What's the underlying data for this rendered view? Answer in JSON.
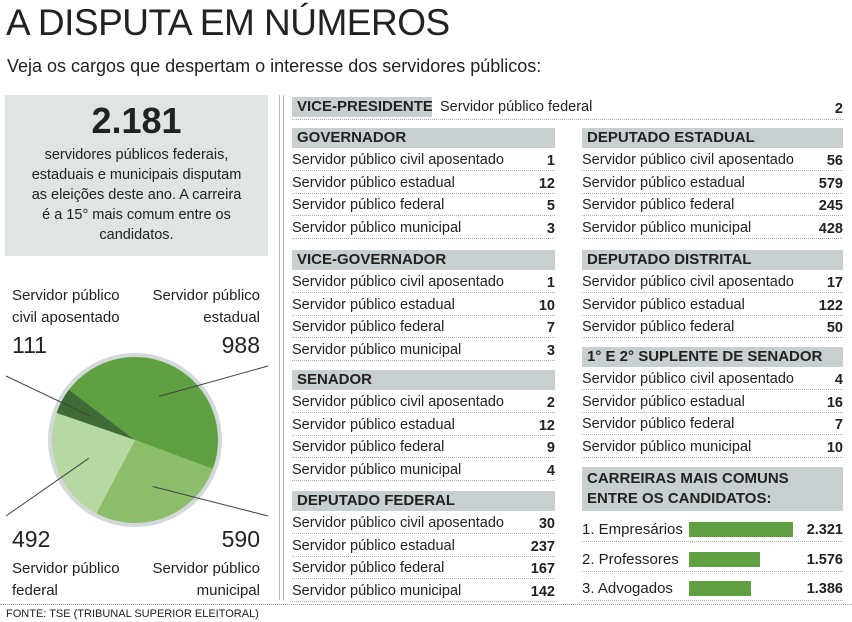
{
  "header": {
    "title": "A DISPUTA EM NÚMEROS",
    "subtitle": "Veja os cargos que despertam o interesse dos servidores públicos:"
  },
  "highlight": {
    "number": "2.181",
    "text": "servidores públicos federais, estaduais e municipais disputam as eleições deste ano. A carreira é a 15° mais comum entre os candidatos."
  },
  "tables": [
    {
      "title": "VICE-PRESIDENTE",
      "rows": [
        [
          "Servidor público federal",
          2
        ]
      ]
    },
    {
      "title": "GOVERNADOR",
      "rows": [
        [
          "Servidor público civil aposentado",
          1
        ],
        [
          "Servidor público estadual",
          12
        ],
        [
          "Servidor público federal",
          5
        ],
        [
          "Servidor público municipal",
          3
        ]
      ]
    },
    {
      "title": "VICE-GOVERNADOR",
      "rows": [
        [
          "Servidor público civil aposentado",
          1
        ],
        [
          "Servidor público estadual",
          10
        ],
        [
          "Servidor público federal",
          7
        ],
        [
          "Servidor público municipal",
          3
        ]
      ]
    },
    {
      "title": "SENADOR",
      "rows": [
        [
          "Servidor público civil aposentado",
          2
        ],
        [
          "Servidor público estadual",
          12
        ],
        [
          "Servidor público federal",
          9
        ],
        [
          "Servidor público municipal",
          4
        ]
      ]
    },
    {
      "title": "DEPUTADO FEDERAL",
      "rows": [
        [
          "Servidor público civil aposentado",
          30
        ],
        [
          "Servidor público estadual",
          237
        ],
        [
          "Servidor público federal",
          167
        ],
        [
          "Servidor público municipal",
          142
        ]
      ]
    },
    {
      "title": "DEPUTADO ESTADUAL",
      "rows": [
        [
          "Servidor público civil aposentado",
          56
        ],
        [
          "Servidor público estadual",
          579
        ],
        [
          "Servidor público federal",
          245
        ],
        [
          "Servidor público municipal",
          428
        ]
      ]
    },
    {
      "title": "DEPUTADO DISTRITAL",
      "rows": [
        [
          "Servidor público civil aposentado",
          17
        ],
        [
          "Servidor público estadual",
          122
        ],
        [
          "Servidor público federal",
          50
        ]
      ]
    },
    {
      "title": "1° E 2° SUPLENTE DE SENADOR",
      "rows": [
        [
          "Servidor público civil aposentado",
          4
        ],
        [
          "Servidor público estadual",
          16
        ],
        [
          "Servidor público federal",
          7
        ],
        [
          "Servidor público municipal",
          10
        ]
      ]
    }
  ],
  "chart_data": [
    {
      "type": "pie",
      "categories": [
        "Servidor público civil aposentado",
        "Servidor público estadual",
        "Servidor público municipal",
        "Servidor público federal"
      ],
      "values": [
        111,
        988,
        590,
        492
      ],
      "colors": [
        "#3f6b37",
        "#5fa040",
        "#8bbd6b",
        "#b8d8a2"
      ]
    },
    {
      "type": "bar",
      "title": "CARREIRAS MAIS COMUNS ENTRE OS CANDIDATOS:",
      "categories": [
        "1. Empresários",
        "2. Professores",
        "3. Advogados"
      ],
      "values": [
        2321,
        1576,
        1386
      ],
      "value_labels": [
        "2.321",
        "1.576",
        "1.386"
      ],
      "color": "#5fa040"
    }
  ],
  "source": "FONTE: TSE (TRIBUNAL SUPERIOR ELEITORAL)"
}
